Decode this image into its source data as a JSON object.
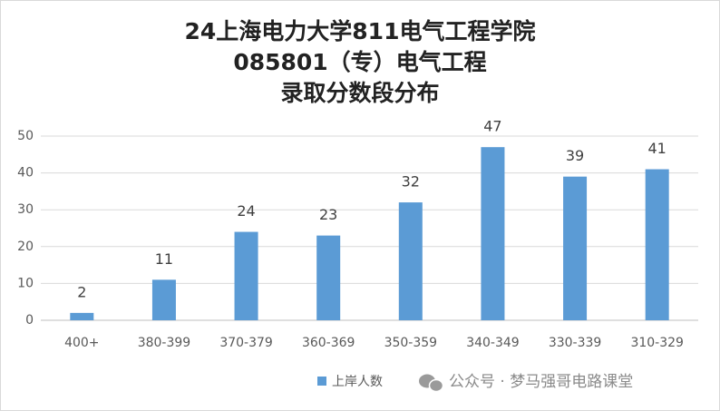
{
  "chart_data": {
    "type": "bar",
    "title": [
      "24上海电力大学811电气工程学院",
      "085801（专）电气工程",
      "录取分数段分布"
    ],
    "categories": [
      "400+",
      "380-399",
      "370-379",
      "360-369",
      "350-359",
      "340-349",
      "330-339",
      "310-329"
    ],
    "series": [
      {
        "name": "上岸人数",
        "color": "#5b9bd5",
        "values": [
          2,
          11,
          24,
          23,
          32,
          47,
          39,
          41
        ]
      }
    ],
    "ylim": [
      0,
      50
    ],
    "yticks": [
      0,
      10,
      20,
      30,
      40,
      50
    ],
    "grid": true,
    "legend": "bottom",
    "watermark": "公众号 · 梦马强哥电路课堂"
  }
}
